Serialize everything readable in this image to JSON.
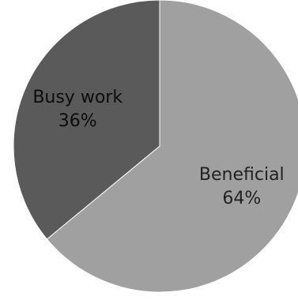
{
  "chart_data": {
    "type": "pie",
    "start_angle_deg": 0,
    "direction": "clockwise",
    "slices": [
      {
        "label": "Beneficial",
        "value": 64,
        "value_label": "64%",
        "color": "#a0a0a0",
        "label_color": "#222222"
      },
      {
        "label": "Busy work",
        "value": 36,
        "value_label": "36%",
        "color": "#5a5a5a",
        "label_color": "#0d0d0d"
      }
    ],
    "legend": "none"
  }
}
